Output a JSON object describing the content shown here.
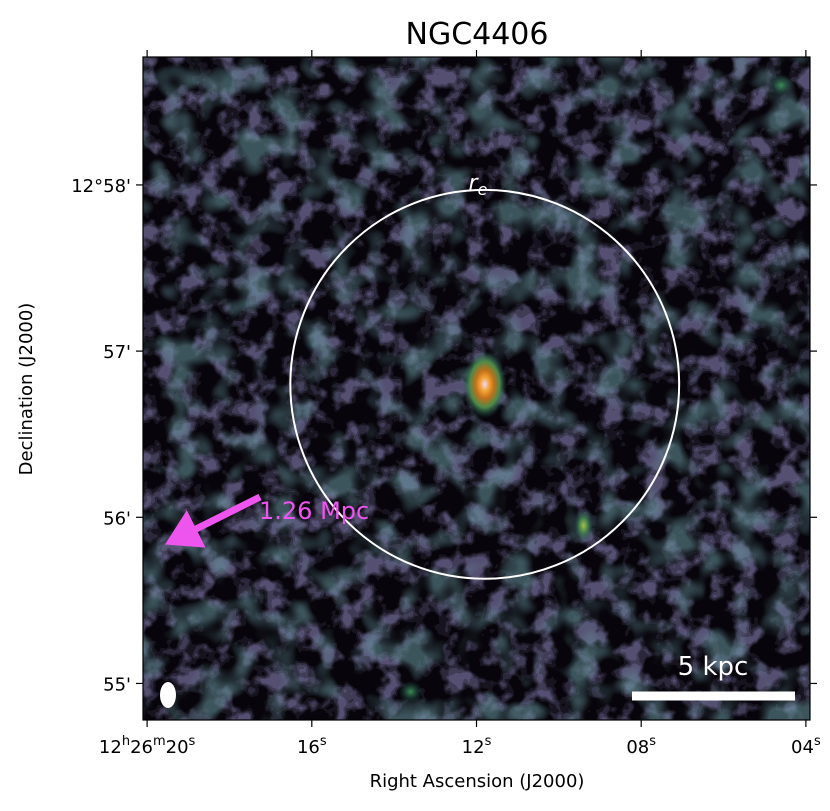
{
  "chart_data": {
    "type": "image",
    "title": "NGC4406",
    "xlabel": "Right Ascension (J2000)",
    "ylabel": "Declination (J2000)",
    "x_ticks": [
      {
        "label": "12h26m20s",
        "parts": [
          "12",
          "h",
          "26",
          "m",
          "20",
          "s"
        ],
        "value": 20
      },
      {
        "label": "16s",
        "parts": [
          "16",
          "s"
        ],
        "value": 16
      },
      {
        "label": "12s",
        "parts": [
          "12",
          "s"
        ],
        "value": 12
      },
      {
        "label": "08s",
        "parts": [
          "08",
          "s"
        ],
        "value": 8
      },
      {
        "label": "04s",
        "parts": [
          "04",
          "s"
        ],
        "value": 4
      }
    ],
    "y_ticks": [
      {
        "label": "12°58'",
        "value": 58
      },
      {
        "label": "57'",
        "value": 57
      },
      {
        "label": "56'",
        "value": 56
      },
      {
        "label": "55'",
        "value": 55
      }
    ],
    "xlim": [
      20.1,
      3.9
    ],
    "ylim": [
      54.78,
      58.77
    ],
    "re_circle": {
      "label_italic": "r",
      "label_sub": "e",
      "center_ra_s": 11.8,
      "center_dec_min": 56.8,
      "radius_arcmin": 1.17
    },
    "arrow": {
      "label": "1.26 Mpc",
      "color": "#ee55ee"
    },
    "scalebar": {
      "label": "5 kpc",
      "color": "#ffffff"
    },
    "beam_color": "#ffffff",
    "sources": [
      {
        "ra_s": 11.8,
        "dec_min": 56.8,
        "peak": "bright",
        "colors": [
          "#f3d8f0",
          "#f0a030",
          "#c0701a",
          "#4c8a4a",
          "#1f4a55"
        ]
      },
      {
        "ra_s": 9.4,
        "dec_min": 55.95,
        "peak": "faint",
        "colors": [
          "#a4c04a",
          "#3f7b4c",
          "#1b3d4a"
        ]
      },
      {
        "ra_s": 13.6,
        "dec_min": 54.95,
        "peak": "faint",
        "colors": [
          "#3e8d55",
          "#1f4a4e"
        ]
      },
      {
        "ra_s": 4.6,
        "dec_min": 58.6,
        "peak": "faint",
        "colors": [
          "#3e8d55",
          "#1f4a4e"
        ]
      }
    ],
    "colormap": "dark-purple-teal-green-orange-pink"
  }
}
